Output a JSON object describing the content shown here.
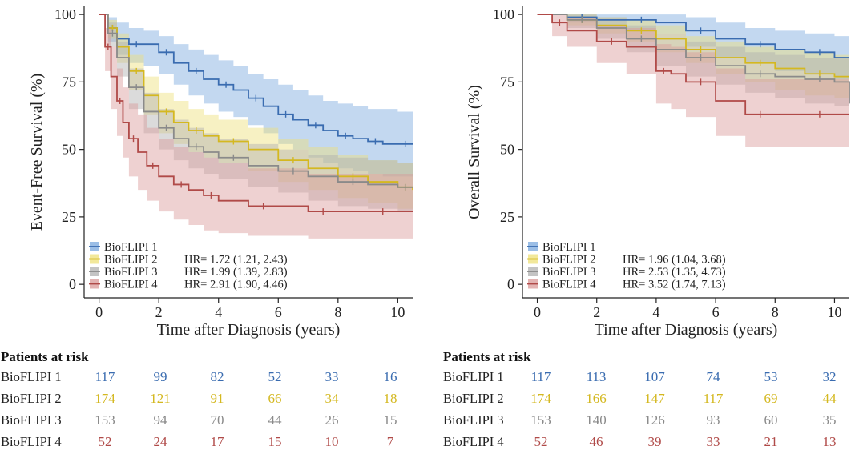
{
  "colors": {
    "BioFLIPI 1": "#3a6cb0",
    "BioFLIPI 2": "#d4b820",
    "BioFLIPI 3": "#8a8a8a",
    "BioFLIPI 4": "#b04a48"
  },
  "band_colors": {
    "BioFLIPI 1": "#7aa8de",
    "BioFLIPI 2": "#eee07a",
    "BioFLIPI 3": "#b0b0b0",
    "BioFLIPI 4": "#d99a98"
  },
  "chart_data": [
    {
      "type": "line",
      "subtype": "kaplan-meier",
      "ylabel": "Event-Free Survival (%)",
      "xlabel": "Time after Diagnosis (years)",
      "xlim": [
        -0.5,
        10.5
      ],
      "ylim": [
        -5,
        103
      ],
      "xticks": [
        0,
        2,
        4,
        6,
        8,
        10
      ],
      "yticks": [
        0,
        25,
        50,
        75,
        100
      ],
      "legend": [
        "BioFLIPI 1",
        "BioFLIPI 2",
        "BioFLIPI 3",
        "BioFLIPI 4"
      ],
      "hr_labels": [
        "",
        "HR= 1.72 (1.21, 2.43)",
        "HR= 1.99 (1.39, 2.83)",
        "HR= 2.91 (1.90, 4.46)"
      ],
      "series": [
        {
          "name": "BioFLIPI 1",
          "x": [
            0,
            0.3,
            0.6,
            1.0,
            1.5,
            2.0,
            2.5,
            3.0,
            3.5,
            4.0,
            4.5,
            5.0,
            5.5,
            6.0,
            6.5,
            7.0,
            7.5,
            8.0,
            8.5,
            9.0,
            9.5,
            10.0,
            10.5
          ],
          "y": [
            100,
            95,
            91,
            89,
            89,
            86,
            82,
            79,
            76,
            74,
            72,
            69,
            66,
            63,
            61,
            59,
            57,
            55,
            54,
            53,
            52,
            52,
            52
          ],
          "lower": [
            100,
            90,
            85,
            82,
            81,
            78,
            74,
            70,
            67,
            64,
            62,
            59,
            56,
            52,
            50,
            47,
            45,
            43,
            42,
            41,
            40,
            40,
            40
          ],
          "upper": [
            100,
            99,
            97,
            95,
            94,
            92,
            89,
            87,
            85,
            83,
            81,
            78,
            76,
            74,
            72,
            70,
            68,
            67,
            66,
            65,
            65,
            64,
            64
          ]
        },
        {
          "name": "BioFLIPI 2",
          "x": [
            0,
            0.3,
            0.6,
            1.0,
            1.5,
            2.0,
            2.5,
            3.0,
            3.5,
            4.0,
            5.0,
            6.0,
            7.0,
            8.0,
            9.0,
            10.0,
            10.5
          ],
          "y": [
            100,
            95,
            88,
            79,
            70,
            64,
            60,
            57,
            55,
            53,
            50,
            46,
            43,
            40,
            38,
            36,
            35
          ],
          "lower": [
            100,
            91,
            82,
            72,
            63,
            56,
            52,
            49,
            47,
            45,
            42,
            38,
            35,
            32,
            30,
            28,
            27
          ],
          "upper": [
            100,
            98,
            93,
            85,
            77,
            71,
            68,
            65,
            63,
            61,
            58,
            54,
            51,
            48,
            46,
            45,
            44
          ]
        },
        {
          "name": "BioFLIPI 3",
          "x": [
            0,
            0.3,
            0.6,
            1.0,
            1.5,
            2.0,
            2.5,
            3.0,
            3.5,
            4.0,
            5.0,
            6.0,
            7.0,
            8.0,
            9.0,
            10.0,
            10.5
          ],
          "y": [
            100,
            93,
            84,
            73,
            64,
            58,
            54,
            51,
            49,
            47,
            44,
            42,
            40,
            38,
            37,
            36,
            36
          ],
          "lower": [
            100,
            88,
            77,
            65,
            56,
            50,
            46,
            43,
            41,
            39,
            36,
            34,
            31,
            29,
            28,
            27,
            27
          ],
          "upper": [
            100,
            97,
            90,
            80,
            71,
            65,
            61,
            58,
            56,
            54,
            52,
            50,
            48,
            47,
            46,
            45,
            45
          ]
        },
        {
          "name": "BioFLIPI 4",
          "x": [
            0,
            0.2,
            0.4,
            0.6,
            0.8,
            1.0,
            1.3,
            1.6,
            2.0,
            2.5,
            3.0,
            3.5,
            4.0,
            5.0,
            6.0,
            7.0,
            8.0,
            9.0,
            10.0,
            10.5
          ],
          "y": [
            100,
            88,
            77,
            68,
            60,
            54,
            49,
            44,
            40,
            37,
            35,
            33,
            31,
            29,
            29,
            27,
            27,
            27,
            27,
            27
          ],
          "lower": [
            100,
            79,
            65,
            55,
            47,
            40,
            35,
            31,
            27,
            24,
            22,
            20,
            19,
            18,
            18,
            17,
            17,
            17,
            17,
            17
          ],
          "upper": [
            100,
            95,
            88,
            80,
            73,
            67,
            63,
            58,
            54,
            51,
            49,
            47,
            45,
            43,
            43,
            41,
            41,
            41,
            41,
            41
          ]
        }
      ]
    },
    {
      "type": "line",
      "subtype": "kaplan-meier",
      "ylabel": "Overall Survival (%)",
      "xlabel": "Time after Diagnosis (years)",
      "xlim": [
        -0.5,
        10.5
      ],
      "ylim": [
        -5,
        103
      ],
      "xticks": [
        0,
        2,
        4,
        6,
        8,
        10
      ],
      "yticks": [
        0,
        25,
        50,
        75,
        100
      ],
      "legend": [
        "BioFLIPI 1",
        "BioFLIPI 2",
        "BioFLIPI 3",
        "BioFLIPI 4"
      ],
      "hr_labels": [
        "",
        "HR= 1.96 (1.04, 3.68)",
        "HR= 2.53 (1.35, 4.73)",
        "HR= 3.52 (1.74, 7.13)"
      ],
      "series": [
        {
          "name": "BioFLIPI 1",
          "x": [
            0,
            1.0,
            2.0,
            3.0,
            4.0,
            5.0,
            6.0,
            7.0,
            8.0,
            9.0,
            10.0,
            10.5
          ],
          "y": [
            100,
            99,
            98,
            98,
            97,
            94,
            91,
            89,
            87,
            86,
            84,
            84
          ],
          "lower": [
            100,
            97,
            95,
            94,
            93,
            88,
            84,
            82,
            79,
            78,
            76,
            75
          ],
          "upper": [
            100,
            100,
            100,
            100,
            100,
            99,
            97,
            95,
            94,
            93,
            92,
            92
          ]
        },
        {
          "name": "BioFLIPI 2",
          "x": [
            0,
            1.0,
            2.0,
            3.0,
            4.0,
            5.0,
            6.0,
            7.0,
            8.0,
            9.0,
            10.0,
            10.5
          ],
          "y": [
            100,
            98,
            96,
            94,
            91,
            87,
            84,
            82,
            80,
            78,
            77,
            77
          ],
          "lower": [
            100,
            96,
            93,
            90,
            86,
            82,
            78,
            75,
            72,
            70,
            69,
            69
          ],
          "upper": [
            100,
            100,
            99,
            98,
            96,
            92,
            90,
            88,
            87,
            86,
            85,
            85
          ]
        },
        {
          "name": "BioFLIPI 3",
          "x": [
            0,
            1.0,
            2.0,
            3.0,
            4.0,
            5.0,
            6.0,
            7.0,
            8.0,
            9.0,
            10.0,
            10.5
          ],
          "y": [
            100,
            98,
            95,
            91,
            87,
            84,
            81,
            78,
            77,
            76,
            75,
            67
          ],
          "lower": [
            100,
            95,
            91,
            86,
            81,
            77,
            74,
            71,
            69,
            67,
            66,
            56
          ],
          "upper": [
            100,
            100,
            99,
            96,
            93,
            90,
            88,
            86,
            85,
            84,
            84,
            78
          ]
        },
        {
          "name": "BioFLIPI 4",
          "x": [
            0,
            0.5,
            1.0,
            2.0,
            3.0,
            4.0,
            4.5,
            5.0,
            6.0,
            7.0,
            8.0,
            9.0,
            10.0,
            10.5
          ],
          "y": [
            100,
            97,
            94,
            90,
            88,
            79,
            78,
            75,
            68,
            63,
            63,
            63,
            63,
            63
          ],
          "lower": [
            100,
            92,
            88,
            82,
            78,
            67,
            65,
            62,
            55,
            51,
            51,
            51,
            51,
            51
          ],
          "upper": [
            100,
            100,
            99,
            96,
            95,
            89,
            88,
            86,
            80,
            76,
            76,
            76,
            76,
            76
          ]
        }
      ]
    }
  ],
  "risk_tables": [
    {
      "title": "Patients at risk",
      "rows": [
        {
          "group": "BioFLIPI 1",
          "values": [
            "117",
            "99",
            "82",
            "52",
            "33",
            "16"
          ]
        },
        {
          "group": "BioFLIPI 2",
          "values": [
            "174",
            "121",
            "91",
            "66",
            "34",
            "18"
          ]
        },
        {
          "group": "BioFLIPI 3",
          "values": [
            "153",
            "94",
            "70",
            "44",
            "26",
            "15"
          ]
        },
        {
          "group": "BioFLIPI 4",
          "values": [
            "52",
            "24",
            "17",
            "15",
            "10",
            "7"
          ]
        }
      ]
    },
    {
      "title": "Patients at risk",
      "rows": [
        {
          "group": "BioFLIPI 1",
          "values": [
            "117",
            "113",
            "107",
            "74",
            "53",
            "32"
          ]
        },
        {
          "group": "BioFLIPI 2",
          "values": [
            "174",
            "166",
            "147",
            "117",
            "69",
            "44"
          ]
        },
        {
          "group": "BioFLIPI 3",
          "values": [
            "153",
            "140",
            "126",
            "93",
            "60",
            "35"
          ]
        },
        {
          "group": "BioFLIPI 4",
          "values": [
            "52",
            "46",
            "39",
            "33",
            "21",
            "13"
          ]
        }
      ]
    }
  ]
}
